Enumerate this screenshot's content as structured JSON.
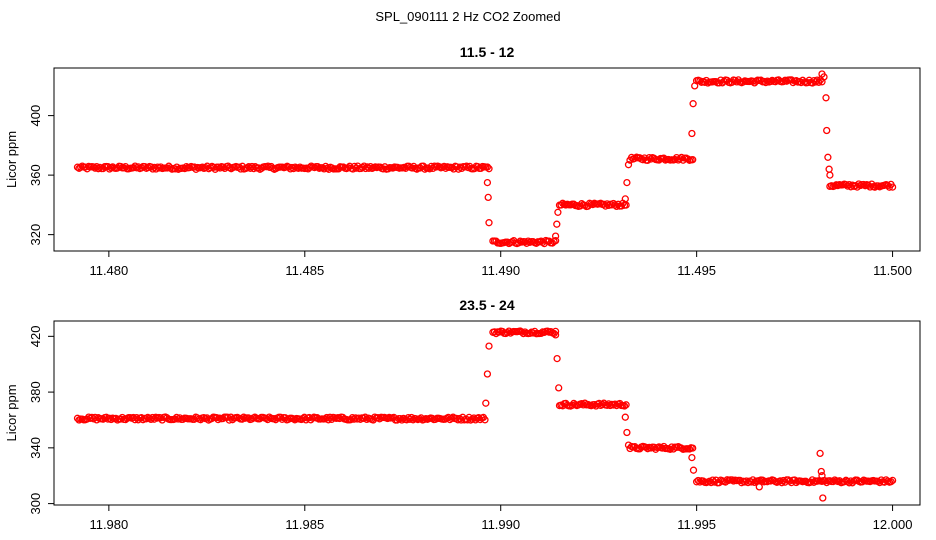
{
  "figure": {
    "title": "SPL_090111  2 Hz CO2 Zoomed"
  },
  "colors": {
    "points": "#ff0000",
    "axes": "#000000",
    "background": "#ffffff"
  },
  "chart_data": [
    {
      "type": "scatter",
      "title": "11.5 - 12",
      "xlabel": "",
      "ylabel": "Licor ppm",
      "xlim": [
        11.4786,
        11.5007
      ],
      "ylim": [
        309,
        432
      ],
      "xticks": [
        "11.480",
        "11.485",
        "11.490",
        "11.495",
        "11.500"
      ],
      "xtick_values": [
        11.48,
        11.485,
        11.49,
        11.495,
        11.5
      ],
      "yticks": [
        "320",
        "360",
        "400"
      ],
      "ytick_values": [
        320,
        360,
        400
      ],
      "marker": "open-circle",
      "color": "#ff0000",
      "grid": false,
      "segments": [
        {
          "x_start": 11.4792,
          "x_end": 11.4897,
          "y": 365
        },
        {
          "x_start": 11.4898,
          "x_end": 11.4914,
          "y": 315
        },
        {
          "x_start": 11.4915,
          "x_end": 11.4932,
          "y": 340
        },
        {
          "x_start": 11.4933,
          "x_end": 11.4949,
          "y": 371
        },
        {
          "x_start": 11.495,
          "x_end": 11.4982,
          "y": 423
        },
        {
          "x_start": 11.4984,
          "x_end": 11.5,
          "y": 353
        }
      ],
      "transition_points": [
        {
          "x": 11.48966,
          "y": 355
        },
        {
          "x": 11.48968,
          "y": 345
        },
        {
          "x": 11.4897,
          "y": 328
        },
        {
          "x": 11.4914,
          "y": 319
        },
        {
          "x": 11.49143,
          "y": 327
        },
        {
          "x": 11.49146,
          "y": 335
        },
        {
          "x": 11.49318,
          "y": 344
        },
        {
          "x": 11.49322,
          "y": 355
        },
        {
          "x": 11.49326,
          "y": 367
        },
        {
          "x": 11.49488,
          "y": 388
        },
        {
          "x": 11.49491,
          "y": 408
        },
        {
          "x": 11.49495,
          "y": 420
        },
        {
          "x": 11.4982,
          "y": 428
        },
        {
          "x": 11.49825,
          "y": 426
        },
        {
          "x": 11.4983,
          "y": 412
        },
        {
          "x": 11.49832,
          "y": 390
        },
        {
          "x": 11.49835,
          "y": 372
        },
        {
          "x": 11.49838,
          "y": 364
        },
        {
          "x": 11.4984,
          "y": 360
        }
      ]
    },
    {
      "type": "scatter",
      "title": "23.5 - 24",
      "xlabel": "",
      "ylabel": "Licor ppm",
      "xlim": [
        11.9786,
        12.0007
      ],
      "ylim": [
        299,
        431
      ],
      "xticks": [
        "11.980",
        "11.985",
        "11.990",
        "11.995",
        "12.000"
      ],
      "xtick_values": [
        11.98,
        11.985,
        11.99,
        11.995,
        12.0
      ],
      "yticks": [
        "300",
        "340",
        "380",
        "420"
      ],
      "ytick_values": [
        300,
        340,
        380,
        420
      ],
      "marker": "open-circle",
      "color": "#ff0000",
      "grid": false,
      "segments": [
        {
          "x_start": 11.9792,
          "x_end": 11.9896,
          "y": 361
        },
        {
          "x_start": 11.9898,
          "x_end": 11.9914,
          "y": 423
        },
        {
          "x_start": 11.9915,
          "x_end": 11.9932,
          "y": 371
        },
        {
          "x_start": 11.9933,
          "x_end": 11.9949,
          "y": 340
        },
        {
          "x_start": 11.995,
          "x_end": 12.0,
          "y": 316
        }
      ],
      "transition_points": [
        {
          "x": 11.98962,
          "y": 372
        },
        {
          "x": 11.98966,
          "y": 393
        },
        {
          "x": 11.9897,
          "y": 413
        },
        {
          "x": 11.9914,
          "y": 421
        },
        {
          "x": 11.99144,
          "y": 404
        },
        {
          "x": 11.99148,
          "y": 383
        },
        {
          "x": 11.99318,
          "y": 362
        },
        {
          "x": 11.99322,
          "y": 351
        },
        {
          "x": 11.99326,
          "y": 342
        },
        {
          "x": 11.99488,
          "y": 333
        },
        {
          "x": 11.99492,
          "y": 324
        },
        {
          "x": 11.9966,
          "y": 312
        },
        {
          "x": 11.99815,
          "y": 336
        },
        {
          "x": 11.99818,
          "y": 323
        },
        {
          "x": 11.9982,
          "y": 320
        },
        {
          "x": 11.99822,
          "y": 304
        }
      ]
    }
  ]
}
